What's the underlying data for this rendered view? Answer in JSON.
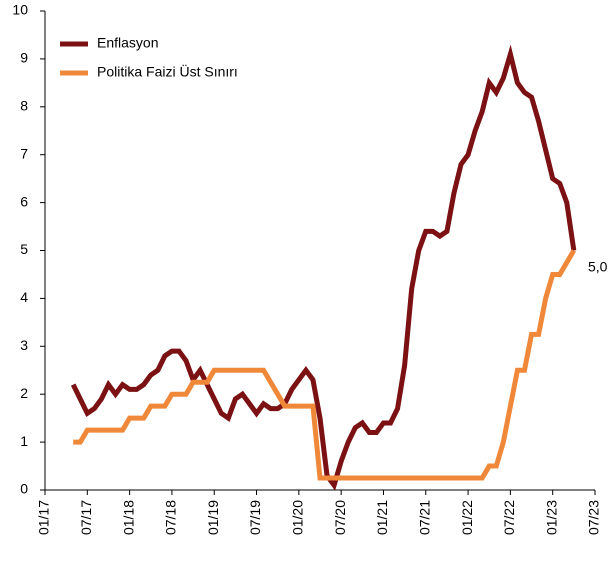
{
  "chart_data": {
    "type": "line",
    "x": [
      "05/17",
      "06/17",
      "07/17",
      "08/17",
      "09/17",
      "10/17",
      "11/17",
      "12/17",
      "01/18",
      "02/18",
      "03/18",
      "04/18",
      "05/18",
      "06/18",
      "07/18",
      "08/18",
      "09/18",
      "10/18",
      "11/18",
      "12/18",
      "01/19",
      "02/19",
      "03/19",
      "04/19",
      "05/19",
      "06/19",
      "07/19",
      "08/19",
      "09/19",
      "10/19",
      "11/19",
      "12/19",
      "01/20",
      "02/20",
      "03/20",
      "04/20",
      "05/20",
      "06/20",
      "07/20",
      "08/20",
      "09/20",
      "10/20",
      "11/20",
      "12/20",
      "01/21",
      "02/21",
      "03/21",
      "04/21",
      "05/21",
      "06/21",
      "07/21",
      "08/21",
      "09/21",
      "10/21",
      "11/21",
      "12/21",
      "01/22",
      "02/22",
      "03/22",
      "04/22",
      "05/22",
      "06/22",
      "07/22",
      "08/22",
      "09/22",
      "10/22",
      "11/22",
      "12/22",
      "01/23",
      "02/23",
      "03/23",
      "04/23"
    ],
    "series": [
      {
        "name": "Enflasyon",
        "color": "#7b1113",
        "values": [
          2.2,
          1.9,
          1.6,
          1.7,
          1.9,
          2.2,
          2.0,
          2.2,
          2.1,
          2.1,
          2.2,
          2.4,
          2.5,
          2.8,
          2.9,
          2.9,
          2.7,
          2.3,
          2.5,
          2.2,
          1.9,
          1.6,
          1.5,
          1.9,
          2.0,
          1.8,
          1.6,
          1.8,
          1.7,
          1.7,
          1.8,
          2.1,
          2.3,
          2.5,
          2.3,
          1.5,
          0.3,
          0.1,
          0.6,
          1.0,
          1.3,
          1.4,
          1.2,
          1.2,
          1.4,
          1.4,
          1.7,
          2.6,
          4.2,
          5.0,
          5.4,
          5.4,
          5.3,
          5.4,
          6.2,
          6.8,
          7.0,
          7.5,
          7.9,
          8.5,
          8.3,
          8.6,
          9.1,
          8.5,
          8.3,
          8.2,
          7.7,
          7.1,
          6.5,
          6.4,
          6.0,
          5.0
        ]
      },
      {
        "name": "Politika Faizi Üst Sınırı",
        "color": "#f0883a",
        "values": [
          1,
          1,
          1.25,
          1.25,
          1.25,
          1.25,
          1.25,
          1.25,
          1.5,
          1.5,
          1.5,
          1.75,
          1.75,
          1.75,
          2,
          2,
          2,
          2.25,
          2.25,
          2.25,
          2.5,
          2.5,
          2.5,
          2.5,
          2.5,
          2.5,
          2.5,
          2.5,
          2.25,
          2,
          1.75,
          1.75,
          1.75,
          1.75,
          1.75,
          0.25,
          0.25,
          0.25,
          0.25,
          0.25,
          0.25,
          0.25,
          0.25,
          0.25,
          0.25,
          0.25,
          0.25,
          0.25,
          0.25,
          0.25,
          0.25,
          0.25,
          0.25,
          0.25,
          0.25,
          0.25,
          0.25,
          0.25,
          0.25,
          0.5,
          0.5,
          1,
          1.75,
          2.5,
          2.5,
          3.25,
          3.25,
          4,
          4.5,
          4.5,
          4.75,
          5
        ]
      }
    ],
    "annotation": "5,0",
    "xlim": [
      "01/17",
      "07/23"
    ],
    "xticks": [
      "01/17",
      "07/17",
      "01/18",
      "07/18",
      "01/19",
      "07/19",
      "01/20",
      "07/20",
      "01/21",
      "07/21",
      "01/22",
      "07/22",
      "01/23",
      "07/23"
    ],
    "ylim": [
      0,
      10
    ],
    "yticks": [
      0,
      1,
      2,
      3,
      4,
      5,
      6,
      7,
      8,
      9,
      10
    ],
    "legend": "upper left",
    "grid": false
  }
}
